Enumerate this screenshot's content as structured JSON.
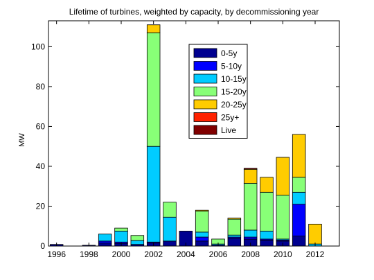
{
  "chart_data": {
    "type": "bar",
    "stacked": true,
    "title": "Lifetime of turbines, weighted by capacity, by decommissioning year",
    "xlabel": "",
    "ylabel": "MW",
    "xlim": [
      1995.5,
      2013.5
    ],
    "ylim": [
      0,
      113
    ],
    "x": [
      1996,
      1997,
      1998,
      1999,
      2000,
      2001,
      2002,
      2003,
      2004,
      2005,
      2006,
      2007,
      2008,
      2009,
      2010,
      2011,
      2012
    ],
    "x_ticks": [
      "1996",
      "1998",
      "2000",
      "2002",
      "2004",
      "2006",
      "2008",
      "2010",
      "2012"
    ],
    "y_ticks": [
      "0",
      "20",
      "40",
      "60",
      "80",
      "100"
    ],
    "legend_position": "top-center",
    "series": [
      {
        "name": "0-5y",
        "color": "#00008f",
        "values": [
          0.8,
          0,
          0.4,
          1.5,
          1.2,
          0.8,
          1.5,
          2.5,
          7.5,
          2.5,
          0.5,
          4.0,
          3.5,
          3.0,
          2.5,
          5.0,
          0
        ]
      },
      {
        "name": "5-10y",
        "color": "#0000ff",
        "values": [
          0,
          0,
          0,
          1.0,
          0.8,
          0,
          0.5,
          0,
          0,
          2.0,
          0,
          0.5,
          1.0,
          0.5,
          0.5,
          16.0,
          0
        ]
      },
      {
        "name": "10-15y",
        "color": "#00ccff",
        "values": [
          0,
          0,
          0,
          3.5,
          5.5,
          2.0,
          48.0,
          12.0,
          0,
          2.5,
          0.5,
          1.0,
          3.5,
          4.0,
          0.5,
          6.0,
          1.0
        ]
      },
      {
        "name": "15-20y",
        "color": "#88ff77",
        "values": [
          0,
          0,
          0,
          0,
          1.5,
          2.5,
          57.0,
          7.5,
          0,
          10.5,
          2.5,
          8.0,
          23.5,
          19.5,
          22.0,
          7.5,
          0
        ]
      },
      {
        "name": "20-25y",
        "color": "#ffcc00",
        "values": [
          0,
          0,
          0,
          0,
          0,
          0,
          4.0,
          0,
          0,
          0.5,
          0,
          0.5,
          7.0,
          7.5,
          19.0,
          21.5,
          10.0
        ]
      },
      {
        "name": "25y+",
        "color": "#ff2200",
        "values": [
          0,
          0,
          0,
          0,
          0,
          0,
          0,
          0,
          0,
          0,
          0,
          0,
          0,
          0,
          0,
          0,
          0
        ]
      },
      {
        "name": "Live",
        "color": "#800000",
        "values": [
          0,
          0,
          0,
          0,
          0,
          0,
          0,
          0,
          0,
          0,
          0,
          0,
          0.5,
          0,
          0,
          0,
          0
        ]
      }
    ]
  }
}
